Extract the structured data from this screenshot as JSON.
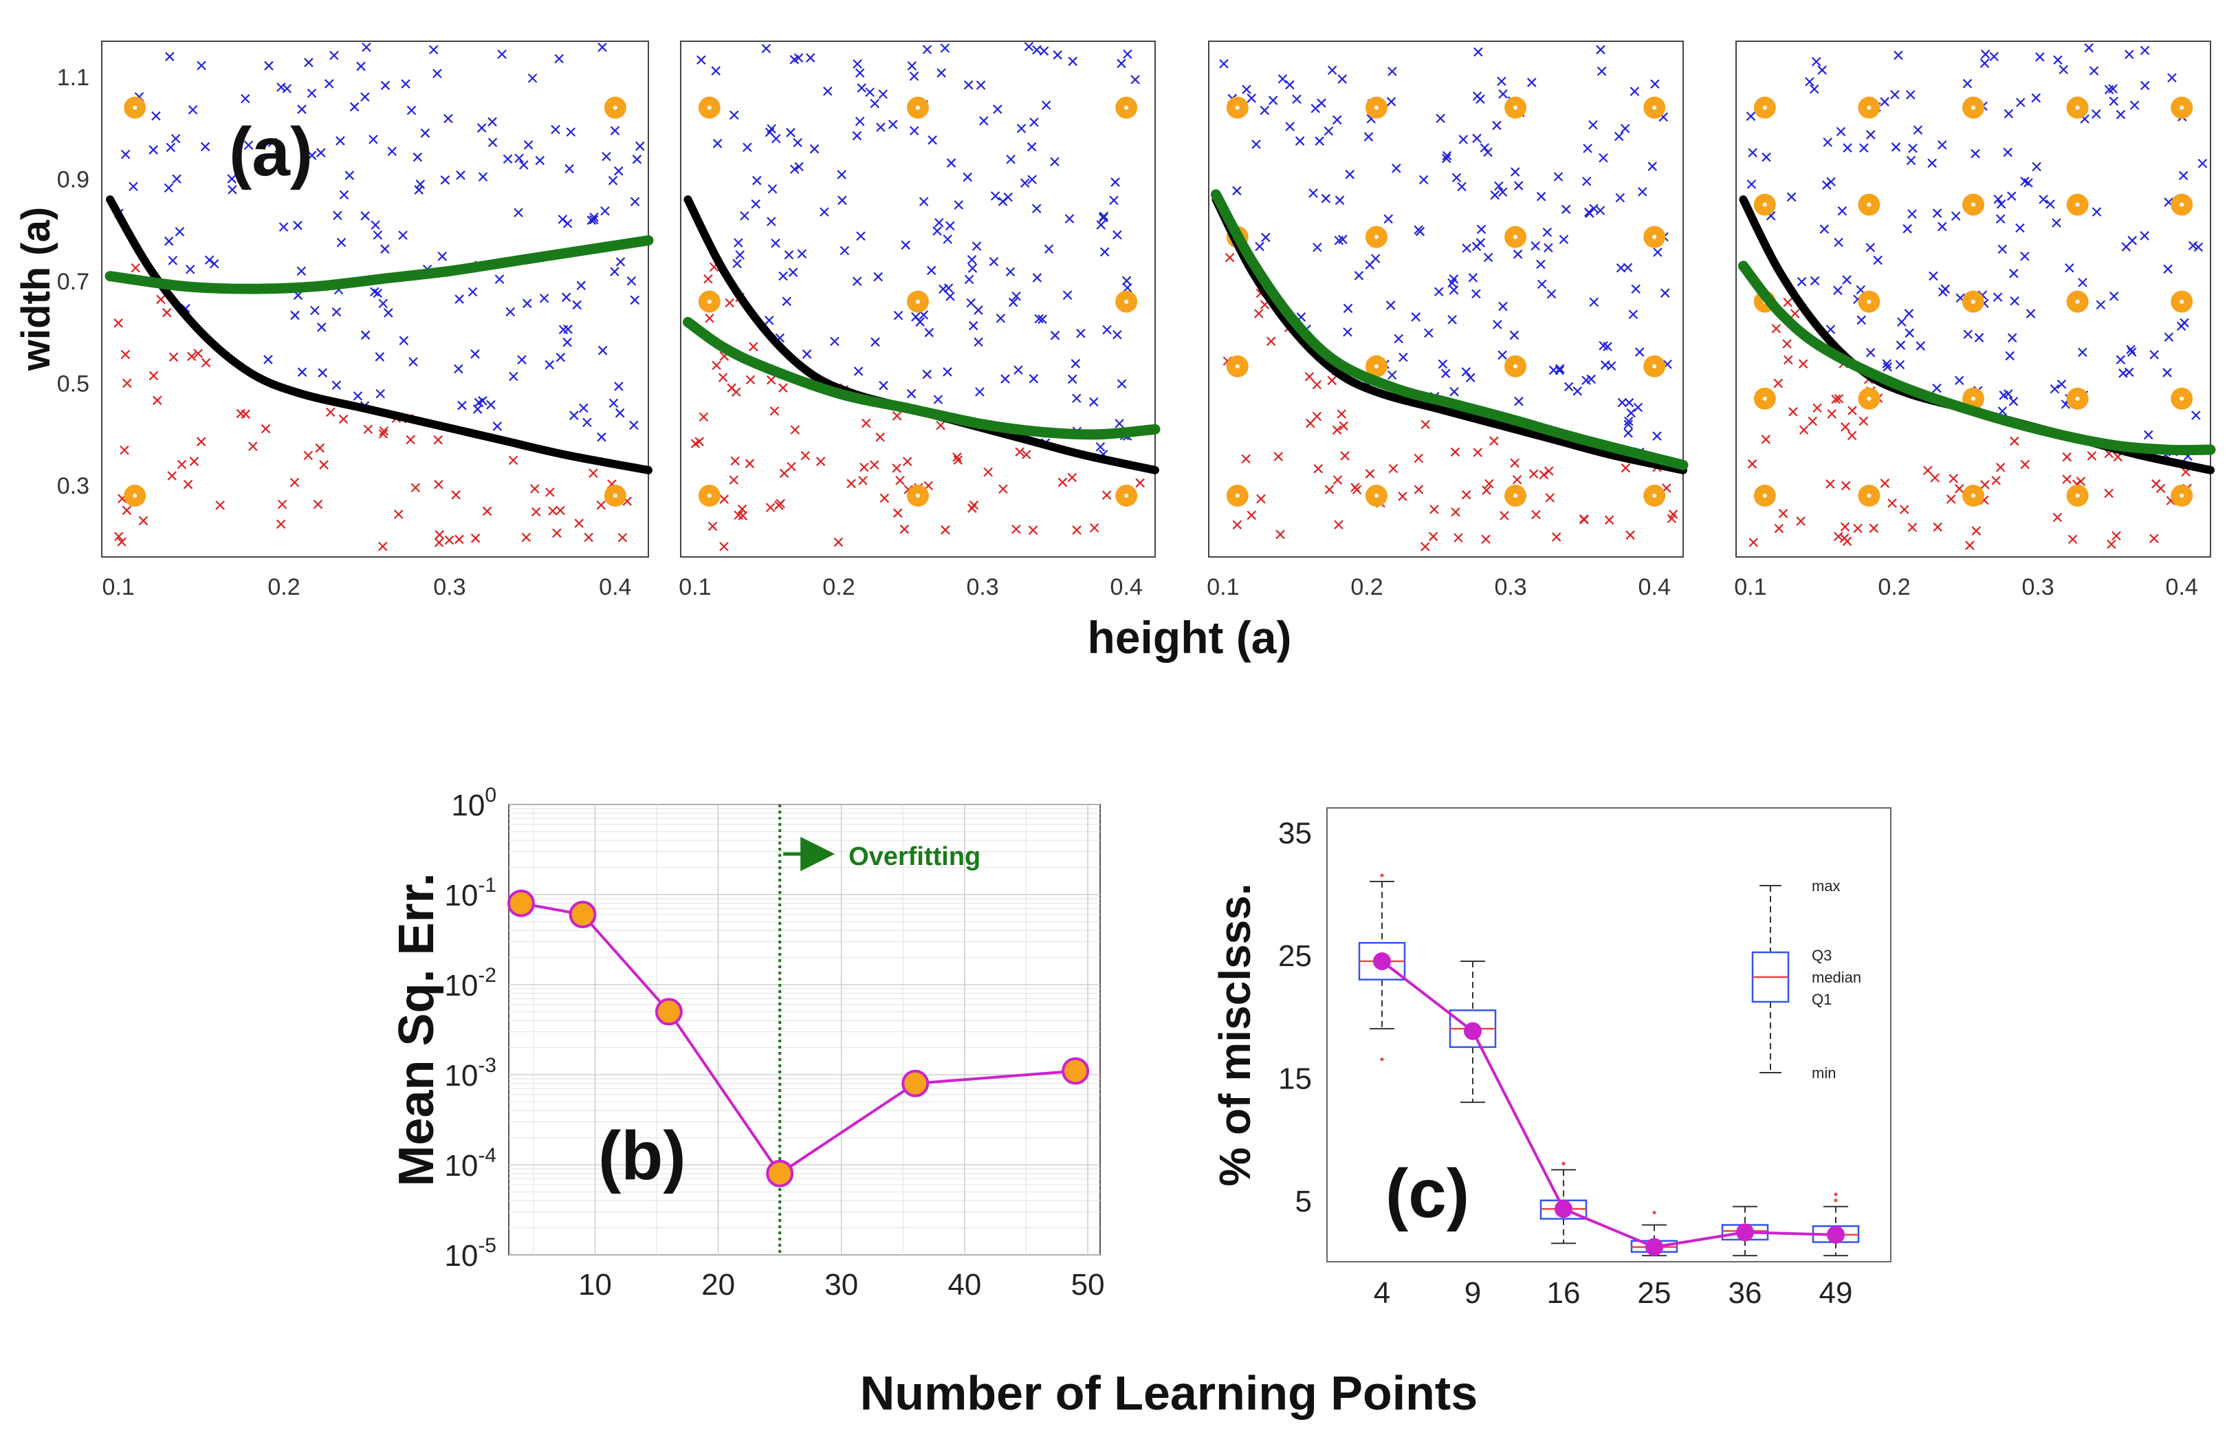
{
  "figure": {
    "shared_xlabel_a": "height (a)",
    "shared_ylabel_a": "width (a)",
    "bottom_xlabel": "Number of Learning Points"
  },
  "colors": {
    "true_boundary": "#000000",
    "learned_boundary": "#1a7a1a",
    "class_a_marker": "#2222dd",
    "class_b_marker": "#dd2222",
    "learning_point": "#f7a21b",
    "line_b_c": "#cc22cc",
    "box": "#3355ee",
    "median": "#ee4444",
    "overfit_line": "#1a7a1a"
  },
  "chart_data": [
    {
      "type": "scatter",
      "panel": "(a)",
      "subpanels": 4,
      "title": "",
      "xlabel": "height (a)",
      "ylabel": "width (a)",
      "xlim": [
        0.09,
        0.42
      ],
      "ylim": [
        0.16,
        1.17
      ],
      "xticks": [
        0.1,
        0.2,
        0.3,
        0.4
      ],
      "yticks": [
        0.3,
        0.5,
        0.7,
        0.9,
        1.1
      ],
      "xtick_labels": [
        "0.1",
        "0.2",
        "0.3",
        "0.4"
      ],
      "ytick_labels": [
        "0.3",
        "0.5",
        "0.7",
        "0.9",
        "1.1"
      ],
      "learning_points_per_subpanel": [
        4,
        9,
        16,
        25
      ],
      "series_names": [
        "true boundary",
        "learned boundary",
        "class above (x)",
        "class below (x)",
        "learning points"
      ],
      "true_boundary": {
        "x": [
          0.095,
          0.12,
          0.15,
          0.18,
          0.21,
          0.25,
          0.29,
          0.33,
          0.37,
          0.42
        ],
        "y": [
          0.86,
          0.72,
          0.6,
          0.52,
          0.48,
          0.45,
          0.42,
          0.39,
          0.36,
          0.33
        ]
      },
      "learned_boundaries": [
        {
          "x": [
            0.095,
            0.14,
            0.18,
            0.22,
            0.26,
            0.3,
            0.34,
            0.38,
            0.42
          ],
          "y": [
            0.71,
            0.69,
            0.685,
            0.69,
            0.705,
            0.72,
            0.74,
            0.76,
            0.78
          ]
        },
        {
          "x": [
            0.095,
            0.12,
            0.15,
            0.2,
            0.25,
            0.3,
            0.34,
            0.38,
            0.42
          ],
          "y": [
            0.62,
            0.57,
            0.53,
            0.48,
            0.45,
            0.42,
            0.405,
            0.4,
            0.41
          ]
        },
        {
          "x": [
            0.095,
            0.12,
            0.15,
            0.18,
            0.22,
            0.26,
            0.3,
            0.35,
            0.42
          ],
          "y": [
            0.87,
            0.74,
            0.62,
            0.54,
            0.49,
            0.46,
            0.43,
            0.39,
            0.34
          ]
        },
        {
          "x": [
            0.095,
            0.12,
            0.15,
            0.2,
            0.25,
            0.3,
            0.35,
            0.39,
            0.42
          ],
          "y": [
            0.73,
            0.64,
            0.57,
            0.5,
            0.45,
            0.41,
            0.38,
            0.37,
            0.37
          ]
        }
      ]
    },
    {
      "type": "line",
      "panel": "(b)",
      "title": "",
      "xlabel": "Number of Learning Points",
      "ylabel": "Mean Sq. Err.",
      "yscale": "log",
      "xlim": [
        3,
        51
      ],
      "ylim": [
        1e-05,
        1
      ],
      "xticks": [
        10,
        20,
        30,
        40,
        50
      ],
      "xtick_labels": [
        "10",
        "20",
        "30",
        "40",
        "50"
      ],
      "ytick_exponents": [
        "0",
        "-1",
        "-2",
        "-3",
        "-4",
        "-5"
      ],
      "x": [
        4,
        9,
        16,
        25,
        36,
        49
      ],
      "y": [
        0.08,
        0.06,
        0.005,
        8e-05,
        0.0008,
        0.0011
      ],
      "annotation": "Overfitting",
      "annotation_x": 25,
      "grid": true
    },
    {
      "type": "box",
      "panel": "(c)",
      "title": "",
      "xlabel": "Number of Learning Points",
      "ylabel": "% of misclsss.",
      "ylim": [
        0,
        37
      ],
      "yticks": [
        5,
        15,
        25,
        35
      ],
      "ytick_labels": [
        "5",
        "15",
        "25",
        "35"
      ],
      "categories": [
        "4",
        "9",
        "16",
        "25",
        "36",
        "49"
      ],
      "boxes": [
        {
          "min": 19,
          "q1": 23,
          "median": 24.5,
          "q3": 26,
          "max": 31,
          "outliers": [
            16.5,
            31.5
          ]
        },
        {
          "min": 13,
          "q1": 17.5,
          "median": 19,
          "q3": 20.5,
          "max": 24.5,
          "outliers": []
        },
        {
          "min": 1.5,
          "q1": 3.5,
          "median": 4.3,
          "q3": 5,
          "max": 7.5,
          "outliers": [
            8
          ]
        },
        {
          "min": 0.5,
          "q1": 0.8,
          "median": 1.2,
          "q3": 1.7,
          "max": 3,
          "outliers": [
            4
          ]
        },
        {
          "min": 0.5,
          "q1": 1.8,
          "median": 2.5,
          "q3": 3,
          "max": 4.5,
          "outliers": []
        },
        {
          "min": 0.5,
          "q1": 1.6,
          "median": 2.2,
          "q3": 2.9,
          "max": 4.5,
          "outliers": [
            5,
            5.5
          ]
        }
      ],
      "mean_line": [
        24.5,
        18.8,
        4.3,
        1.2,
        2.4,
        2.2
      ],
      "legend": {
        "max": "max",
        "q3": "Q3",
        "median": "median",
        "q1": "Q1",
        "min": "min"
      }
    }
  ]
}
